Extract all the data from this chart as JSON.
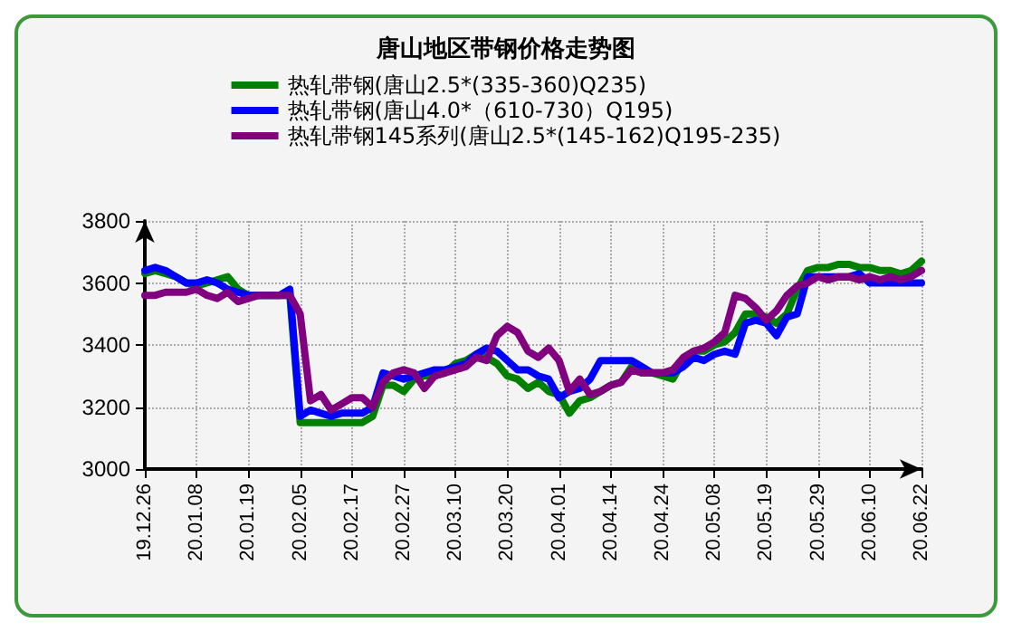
{
  "chart_data": {
    "type": "line",
    "title": "唐山地区带钢价格走势图",
    "categories": [
      "19.12.26",
      null,
      null,
      null,
      null,
      "20.01.08",
      null,
      null,
      null,
      null,
      "20.01.19",
      null,
      null,
      null,
      null,
      "20.02.05",
      null,
      null,
      null,
      null,
      "20.02.17",
      null,
      null,
      null,
      null,
      "20.02.27",
      null,
      null,
      null,
      null,
      "20.03.10",
      null,
      null,
      null,
      null,
      "20.03.20",
      null,
      null,
      null,
      null,
      "20.04.01",
      null,
      null,
      null,
      null,
      "20.04.14",
      null,
      null,
      null,
      null,
      "20.04.24",
      null,
      null,
      null,
      null,
      "20.05.08",
      null,
      null,
      null,
      null,
      "20.05.19",
      null,
      null,
      null,
      null,
      "20.05.29",
      null,
      null,
      null,
      null,
      "20.06.10",
      null,
      null,
      null,
      null,
      "20.06.22"
    ],
    "series": [
      {
        "name": "热轧带钢(唐山2.5*(335-360)Q235)",
        "color": "#008000",
        "values": [
          3630,
          3640,
          3630,
          3620,
          3600,
          3590,
          3600,
          3610,
          3620,
          3580,
          3560,
          3560,
          3560,
          3560,
          3560,
          3150,
          3150,
          3150,
          3150,
          3150,
          3150,
          3150,
          3170,
          3270,
          3270,
          3250,
          3290,
          3300,
          3300,
          3310,
          3340,
          3350,
          3370,
          3360,
          3340,
          3300,
          3290,
          3260,
          3280,
          3250,
          3240,
          3180,
          3220,
          3230,
          3250,
          3270,
          3280,
          3330,
          3310,
          3310,
          3300,
          3290,
          3350,
          3380,
          3380,
          3400,
          3410,
          3440,
          3500,
          3500,
          3490,
          3470,
          3500,
          3580,
          3640,
          3650,
          3650,
          3660,
          3660,
          3650,
          3650,
          3640,
          3640,
          3630,
          3640,
          3670
        ]
      },
      {
        "name": "热轧带钢(唐山4.0*（610-730）Q195)",
        "color": "#0000ff",
        "values": [
          3640,
          3650,
          3640,
          3620,
          3600,
          3600,
          3610,
          3600,
          3580,
          3570,
          3560,
          3560,
          3560,
          3560,
          3580,
          3170,
          3190,
          3180,
          3170,
          3180,
          3180,
          3180,
          3200,
          3310,
          3300,
          3290,
          3300,
          3310,
          3320,
          3320,
          3330,
          3340,
          3370,
          3390,
          3380,
          3350,
          3320,
          3320,
          3300,
          3290,
          3230,
          3250,
          3260,
          3290,
          3350,
          3350,
          3350,
          3350,
          3330,
          3310,
          3310,
          3310,
          3330,
          3360,
          3350,
          3370,
          3380,
          3370,
          3470,
          3480,
          3470,
          3430,
          3490,
          3500,
          3620,
          3620,
          3620,
          3620,
          3620,
          3630,
          3600,
          3600,
          3600,
          3600,
          3600,
          3600
        ]
      },
      {
        "name": "热轧带钢145系列(唐山2.5*(145-162)Q195-235)",
        "color": "#800080",
        "values": [
          3560,
          3560,
          3570,
          3570,
          3570,
          3580,
          3560,
          3550,
          3570,
          3540,
          3550,
          3560,
          3560,
          3560,
          3560,
          3500,
          3220,
          3240,
          3190,
          3210,
          3230,
          3230,
          3200,
          3280,
          3310,
          3320,
          3310,
          3260,
          3300,
          3310,
          3320,
          3330,
          3360,
          3350,
          3430,
          3460,
          3440,
          3380,
          3360,
          3390,
          3350,
          3250,
          3290,
          3240,
          3250,
          3270,
          3280,
          3320,
          3310,
          3310,
          3310,
          3320,
          3360,
          3380,
          3390,
          3410,
          3440,
          3560,
          3550,
          3520,
          3480,
          3510,
          3560,
          3590,
          3600,
          3620,
          3610,
          3620,
          3620,
          3610,
          3620,
          3610,
          3620,
          3610,
          3620,
          3640
        ]
      }
    ],
    "ylim": [
      3000,
      3800
    ],
    "yticks": [
      3000,
      3200,
      3400,
      3600,
      3800
    ],
    "grid": true,
    "legend": "top",
    "marker": "none",
    "line_style": "solid"
  }
}
